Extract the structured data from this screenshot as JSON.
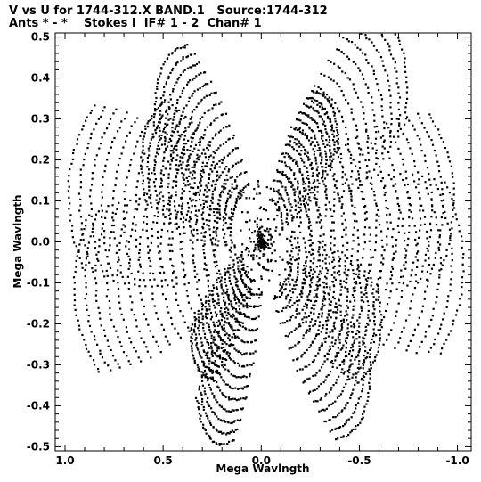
{
  "header": {
    "line1": "V vs U for 1744-312.X BAND.1   Source:1744-312",
    "line2": "Ants * - *    Stokes I  IF# 1 - 2  Chan# 1"
  },
  "chart_data": {
    "type": "scatter",
    "xlabel": "Mega Wavlngth",
    "ylabel": "Mega Wavlngth",
    "xlim": [
      1.05,
      -1.07
    ],
    "ylim": [
      -0.51,
      0.51
    ],
    "x_ticks": [
      1.0,
      0.5,
      0.0,
      -0.5,
      -1.0
    ],
    "x_tick_labels": [
      "1.0",
      "0.5",
      "0.0",
      "-0.5",
      "-1.0"
    ],
    "y_ticks": [
      0.5,
      0.4,
      0.3,
      0.2,
      0.1,
      0.0,
      -0.1,
      -0.2,
      -0.3,
      -0.4,
      -0.5
    ],
    "y_tick_labels": [
      "0.5",
      "0.4",
      "0.3",
      "0.2",
      "0.1",
      "0.0",
      "-0.1",
      "-0.2",
      "-0.3",
      "-0.4",
      "-0.5"
    ],
    "grid": false,
    "point_color": "#000000",
    "arm_tips": [
      [
        0.26,
        -0.48
      ],
      [
        0.51,
        0.42
      ],
      [
        0.98,
        0.15
      ],
      [
        0.95,
        -0.14
      ],
      [
        -0.71,
        0.48
      ],
      [
        -0.52,
        -0.42
      ],
      [
        -0.98,
        0.13
      ],
      [
        -1.03,
        -0.07
      ],
      [
        -0.36,
        0.33
      ],
      [
        0.33,
        -0.3
      ],
      [
        0.6,
        0.25
      ],
      [
        -0.6,
        -0.25
      ]
    ]
  }
}
